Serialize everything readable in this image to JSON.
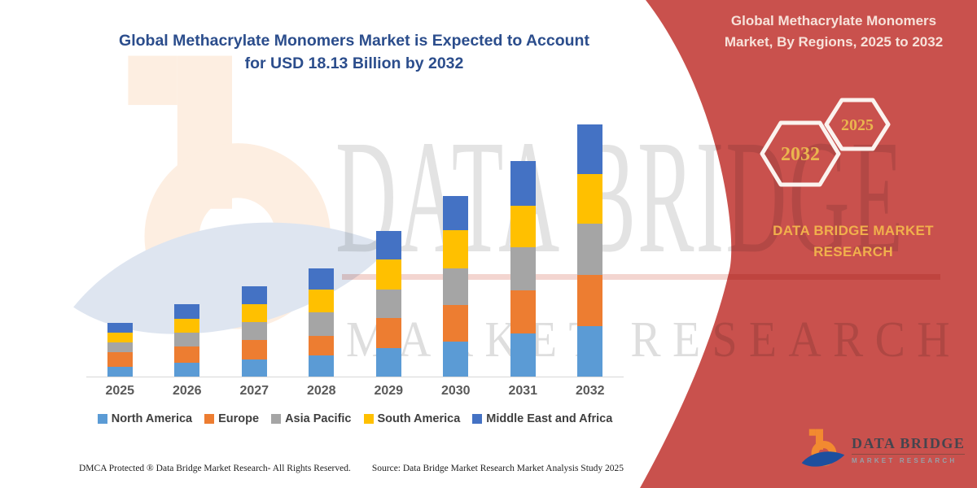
{
  "chart_data": {
    "type": "bar",
    "stacked": true,
    "title": "Global Methacrylate Monomers Market is Expected to Account for USD 18.13 Billion by 2032",
    "title_line1": "Global Methacrylate Monomers Market is Expected to Account",
    "title_line2": "for USD 18.13 Billion by 2032",
    "unit": "USD Billion",
    "categories": [
      "2025",
      "2026",
      "2027",
      "2028",
      "2029",
      "2030",
      "2031",
      "2032"
    ],
    "series": [
      {
        "name": "North America",
        "color": "#5b9bd5",
        "values": [
          0.68,
          0.97,
          1.23,
          1.5,
          2.04,
          2.53,
          3.11,
          3.6
        ]
      },
      {
        "name": "Europe",
        "color": "#ed7d31",
        "values": [
          1.06,
          1.17,
          1.4,
          1.42,
          2.14,
          2.62,
          3.11,
          3.7
        ]
      },
      {
        "name": "Asia Pacific",
        "color": "#a5a5a5",
        "values": [
          0.71,
          0.97,
          1.26,
          1.69,
          2.04,
          2.62,
          3.11,
          3.7
        ]
      },
      {
        "name": "South America",
        "color": "#ffc000",
        "values": [
          0.7,
          0.97,
          1.26,
          1.65,
          2.14,
          2.72,
          3.01,
          3.54
        ]
      },
      {
        "name": "Middle East and Africa",
        "color": "#4472c4",
        "values": [
          0.71,
          1.07,
          1.3,
          1.51,
          2.04,
          2.43,
          3.21,
          3.59
        ]
      }
    ],
    "totals": [
      3.86,
      5.15,
      6.45,
      7.77,
      10.4,
      12.92,
      15.55,
      18.13
    ],
    "ylim": [
      0,
      18.13
    ],
    "grid": false,
    "legend_position": "bottom"
  },
  "right_panel": {
    "heading_line1": "Global Methacrylate Monomers",
    "heading_line2": "Market, By Regions, 2025 to 2032",
    "hexagons": [
      {
        "label": "2032"
      },
      {
        "label": "2025"
      }
    ],
    "brand_line1": "DATA BRIDGE MARKET",
    "brand_line2": "RESEARCH",
    "colors": {
      "ribbon_red": "#c9514d",
      "heading_text": "#f7e2da",
      "gold_text": "#eab54e"
    }
  },
  "logo": {
    "title": "DATA BRIDGE",
    "subtitle": "MARKET RESEARCH",
    "icon": "data-bridge-b-swoosh-icon",
    "colors": {
      "orange": "#f28a30",
      "blue": "#1d4f9e"
    }
  },
  "watermark": {
    "line1": "DATA BRIDGE",
    "line2": "MARKET RESEARCH"
  },
  "footer": {
    "dmca": "DMCA Protected ® Data Bridge Market Research-  All Rights Reserved.",
    "source": "Source: Data Bridge Market Research  Market Analysis Study 2025"
  }
}
